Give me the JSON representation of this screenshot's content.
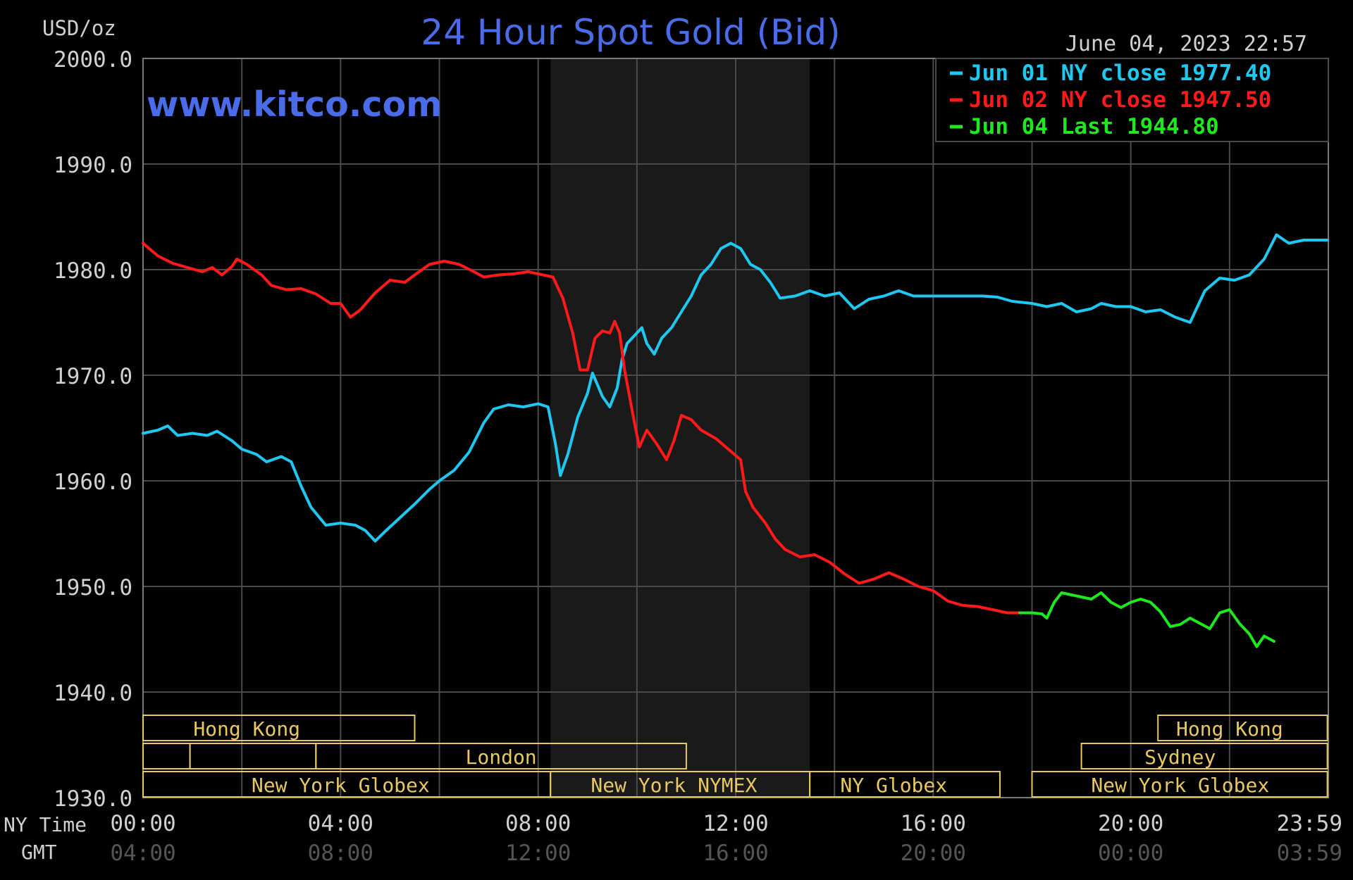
{
  "chart_data": {
    "type": "line",
    "title": "24 Hour Spot Gold (Bid)",
    "ylabel": "USD/oz",
    "watermark": "www.kitco.com",
    "timestamp": "June 04, 2023 22:57",
    "ylim": [
      1930,
      2000
    ],
    "yticks": [
      "2000.0",
      "1990.0",
      "1980.0",
      "1970.0",
      "1960.0",
      "1950.0",
      "1940.0",
      "1930.0"
    ],
    "xlim": [
      0,
      24
    ],
    "x_row_label": "NY Time",
    "gmt_row_label": "GMT",
    "x_ticks": [
      {
        "ny": "00:00",
        "gmt": "04:00"
      },
      {
        "ny": "04:00",
        "gmt": "08:00"
      },
      {
        "ny": "08:00",
        "gmt": "12:00"
      },
      {
        "ny": "12:00",
        "gmt": "16:00"
      },
      {
        "ny": "16:00",
        "gmt": "20:00"
      },
      {
        "ny": "20:00",
        "gmt": "00:00"
      },
      {
        "ny": "23:59",
        "gmt": "03:59"
      }
    ],
    "shaded_region": [
      8.25,
      13.5
    ],
    "legend_position": "top-right",
    "grid": true,
    "series": [
      {
        "name": "Jun 01 NY close 1977.40",
        "color": "#1ec8f0",
        "points": [
          [
            0.0,
            1964.5
          ],
          [
            0.3,
            1964.8
          ],
          [
            0.5,
            1965.2
          ],
          [
            0.7,
            1964.3
          ],
          [
            1.0,
            1964.5
          ],
          [
            1.3,
            1964.3
          ],
          [
            1.5,
            1964.7
          ],
          [
            1.8,
            1963.8
          ],
          [
            2.0,
            1963.0
          ],
          [
            2.3,
            1962.5
          ],
          [
            2.5,
            1961.8
          ],
          [
            2.8,
            1962.3
          ],
          [
            3.0,
            1961.8
          ],
          [
            3.2,
            1959.5
          ],
          [
            3.4,
            1957.5
          ],
          [
            3.7,
            1955.8
          ],
          [
            4.0,
            1956.0
          ],
          [
            4.3,
            1955.8
          ],
          [
            4.5,
            1955.3
          ],
          [
            4.7,
            1954.3
          ],
          [
            4.9,
            1955.2
          ],
          [
            5.2,
            1956.5
          ],
          [
            5.5,
            1957.8
          ],
          [
            5.8,
            1959.2
          ],
          [
            6.0,
            1960.0
          ],
          [
            6.3,
            1961.0
          ],
          [
            6.6,
            1962.7
          ],
          [
            6.9,
            1965.5
          ],
          [
            7.1,
            1966.8
          ],
          [
            7.4,
            1967.2
          ],
          [
            7.7,
            1967.0
          ],
          [
            8.0,
            1967.3
          ],
          [
            8.2,
            1967.0
          ],
          [
            8.35,
            1963.5
          ],
          [
            8.45,
            1960.5
          ],
          [
            8.6,
            1962.5
          ],
          [
            8.8,
            1966.0
          ],
          [
            9.0,
            1968.3
          ],
          [
            9.1,
            1970.2
          ],
          [
            9.3,
            1968.0
          ],
          [
            9.45,
            1967.0
          ],
          [
            9.6,
            1968.8
          ],
          [
            9.7,
            1971.5
          ],
          [
            9.8,
            1973.0
          ],
          [
            10.0,
            1974.0
          ],
          [
            10.1,
            1974.5
          ],
          [
            10.2,
            1973.0
          ],
          [
            10.35,
            1972.0
          ],
          [
            10.5,
            1973.5
          ],
          [
            10.7,
            1974.5
          ],
          [
            10.9,
            1976.0
          ],
          [
            11.1,
            1977.5
          ],
          [
            11.3,
            1979.5
          ],
          [
            11.5,
            1980.5
          ],
          [
            11.7,
            1982.0
          ],
          [
            11.9,
            1982.5
          ],
          [
            12.1,
            1982.0
          ],
          [
            12.3,
            1980.5
          ],
          [
            12.5,
            1980.0
          ],
          [
            12.7,
            1978.8
          ],
          [
            12.9,
            1977.3
          ],
          [
            13.2,
            1977.5
          ],
          [
            13.5,
            1978.0
          ],
          [
            13.8,
            1977.5
          ],
          [
            14.1,
            1977.8
          ],
          [
            14.4,
            1976.3
          ],
          [
            14.7,
            1977.2
          ],
          [
            15.0,
            1977.5
          ],
          [
            15.3,
            1978.0
          ],
          [
            15.6,
            1977.5
          ],
          [
            16.0,
            1977.5
          ],
          [
            16.5,
            1977.5
          ],
          [
            17.0,
            1977.5
          ],
          [
            17.3,
            1977.4
          ],
          [
            17.6,
            1977.0
          ],
          [
            18.0,
            1976.8
          ],
          [
            18.3,
            1976.5
          ],
          [
            18.6,
            1976.8
          ],
          [
            18.9,
            1976.0
          ],
          [
            19.2,
            1976.3
          ],
          [
            19.4,
            1976.8
          ],
          [
            19.7,
            1976.5
          ],
          [
            20.0,
            1976.5
          ],
          [
            20.3,
            1976.0
          ],
          [
            20.6,
            1976.2
          ],
          [
            20.9,
            1975.5
          ],
          [
            21.2,
            1975.0
          ],
          [
            21.35,
            1976.5
          ],
          [
            21.5,
            1978.0
          ],
          [
            21.8,
            1979.2
          ],
          [
            22.1,
            1979.0
          ],
          [
            22.4,
            1979.5
          ],
          [
            22.7,
            1981.0
          ],
          [
            22.95,
            1983.3
          ],
          [
            23.2,
            1982.5
          ],
          [
            23.5,
            1982.8
          ],
          [
            23.98,
            1982.8
          ]
        ]
      },
      {
        "name": "Jun 02 NY close 1947.50",
        "color": "#ff1a1a",
        "points": [
          [
            0.0,
            1982.5
          ],
          [
            0.3,
            1981.3
          ],
          [
            0.6,
            1980.6
          ],
          [
            0.9,
            1980.2
          ],
          [
            1.2,
            1979.8
          ],
          [
            1.4,
            1980.2
          ],
          [
            1.6,
            1979.5
          ],
          [
            1.8,
            1980.3
          ],
          [
            1.9,
            1981.0
          ],
          [
            2.1,
            1980.5
          ],
          [
            2.4,
            1979.5
          ],
          [
            2.6,
            1978.5
          ],
          [
            2.9,
            1978.1
          ],
          [
            3.2,
            1978.2
          ],
          [
            3.5,
            1977.7
          ],
          [
            3.8,
            1976.8
          ],
          [
            4.0,
            1976.8
          ],
          [
            4.2,
            1975.5
          ],
          [
            4.4,
            1976.2
          ],
          [
            4.7,
            1977.8
          ],
          [
            5.0,
            1979.0
          ],
          [
            5.3,
            1978.8
          ],
          [
            5.5,
            1979.5
          ],
          [
            5.8,
            1980.5
          ],
          [
            6.1,
            1980.8
          ],
          [
            6.4,
            1980.5
          ],
          [
            6.7,
            1979.8
          ],
          [
            6.9,
            1979.3
          ],
          [
            7.2,
            1979.5
          ],
          [
            7.5,
            1979.6
          ],
          [
            7.8,
            1979.8
          ],
          [
            8.1,
            1979.5
          ],
          [
            8.3,
            1979.3
          ],
          [
            8.5,
            1977.3
          ],
          [
            8.7,
            1974.0
          ],
          [
            8.85,
            1970.5
          ],
          [
            9.0,
            1970.5
          ],
          [
            9.15,
            1973.5
          ],
          [
            9.3,
            1974.2
          ],
          [
            9.45,
            1974.0
          ],
          [
            9.55,
            1975.1
          ],
          [
            9.65,
            1974.0
          ],
          [
            9.75,
            1970.5
          ],
          [
            9.85,
            1968.0
          ],
          [
            9.95,
            1965.5
          ],
          [
            10.05,
            1963.2
          ],
          [
            10.2,
            1964.8
          ],
          [
            10.4,
            1963.5
          ],
          [
            10.6,
            1962.0
          ],
          [
            10.75,
            1963.8
          ],
          [
            10.9,
            1966.2
          ],
          [
            11.1,
            1965.8
          ],
          [
            11.3,
            1964.8
          ],
          [
            11.6,
            1964.0
          ],
          [
            11.9,
            1962.8
          ],
          [
            12.1,
            1962.0
          ],
          [
            12.2,
            1959.0
          ],
          [
            12.35,
            1957.5
          ],
          [
            12.6,
            1956.0
          ],
          [
            12.8,
            1954.5
          ],
          [
            13.0,
            1953.5
          ],
          [
            13.3,
            1952.8
          ],
          [
            13.6,
            1953.0
          ],
          [
            13.9,
            1952.3
          ],
          [
            14.2,
            1951.2
          ],
          [
            14.5,
            1950.3
          ],
          [
            14.8,
            1950.7
          ],
          [
            15.1,
            1951.3
          ],
          [
            15.4,
            1950.7
          ],
          [
            15.7,
            1950.0
          ],
          [
            16.0,
            1949.6
          ],
          [
            16.3,
            1948.6
          ],
          [
            16.6,
            1948.2
          ],
          [
            16.9,
            1948.1
          ],
          [
            17.2,
            1947.8
          ],
          [
            17.5,
            1947.5
          ],
          [
            17.75,
            1947.5
          ]
        ]
      },
      {
        "name": "Jun 04 Last 1944.80",
        "color": "#1ee81e",
        "points": [
          [
            17.75,
            1947.5
          ],
          [
            18.0,
            1947.5
          ],
          [
            18.2,
            1947.4
          ],
          [
            18.3,
            1947.0
          ],
          [
            18.45,
            1948.5
          ],
          [
            18.6,
            1949.4
          ],
          [
            18.8,
            1949.2
          ],
          [
            19.0,
            1949.0
          ],
          [
            19.2,
            1948.8
          ],
          [
            19.4,
            1949.4
          ],
          [
            19.6,
            1948.5
          ],
          [
            19.8,
            1948.0
          ],
          [
            20.0,
            1948.5
          ],
          [
            20.2,
            1948.8
          ],
          [
            20.4,
            1948.5
          ],
          [
            20.6,
            1947.6
          ],
          [
            20.8,
            1946.2
          ],
          [
            21.0,
            1946.4
          ],
          [
            21.2,
            1947.0
          ],
          [
            21.4,
            1946.5
          ],
          [
            21.6,
            1946.0
          ],
          [
            21.8,
            1947.5
          ],
          [
            22.0,
            1947.8
          ],
          [
            22.2,
            1946.5
          ],
          [
            22.4,
            1945.5
          ],
          [
            22.55,
            1944.3
          ],
          [
            22.7,
            1945.3
          ],
          [
            22.9,
            1944.8
          ]
        ]
      }
    ],
    "sessions": [
      {
        "label": "Hong Kong",
        "row": 0,
        "start": 0.0,
        "end": 5.5,
        "label_at": 2.1
      },
      {
        "label": "Hong Kong",
        "row": 0,
        "start": 20.55,
        "end": 23.98,
        "label_at": 22.0
      },
      {
        "label": "",
        "row": 1,
        "start": 0.0,
        "end": 0.95,
        "label_at": 0.5
      },
      {
        "label": "",
        "row": 1,
        "start": 0.95,
        "end": 3.5,
        "label_at": 2.2
      },
      {
        "label": "London",
        "row": 1,
        "start": 3.5,
        "end": 11.0,
        "label_at": 7.25
      },
      {
        "label": "Sydney",
        "row": 1,
        "start": 19.0,
        "end": 23.98,
        "label_at": 21.0
      },
      {
        "label": "New York Globex",
        "row": 2,
        "start": 0.0,
        "end": 8.25,
        "label_at": 4.0
      },
      {
        "label": "New York NYMEX",
        "row": 2,
        "start": 8.25,
        "end": 13.5,
        "label_at": 10.75
      },
      {
        "label": "NY Globex",
        "row": 2,
        "start": 13.5,
        "end": 17.35,
        "label_at": 15.2
      },
      {
        "label": "New York Globex",
        "row": 2,
        "start": 18.0,
        "end": 23.98,
        "label_at": 21.0
      }
    ],
    "colors": {
      "background": "#000000",
      "grid": "#4a4a4a",
      "frame": "#7a7a7a",
      "shade": "#1a1a1a",
      "session": "#e8c860",
      "title": "#4a6ce8",
      "tick_text": "#d0d0d0",
      "gmt_text": "#555555"
    }
  }
}
